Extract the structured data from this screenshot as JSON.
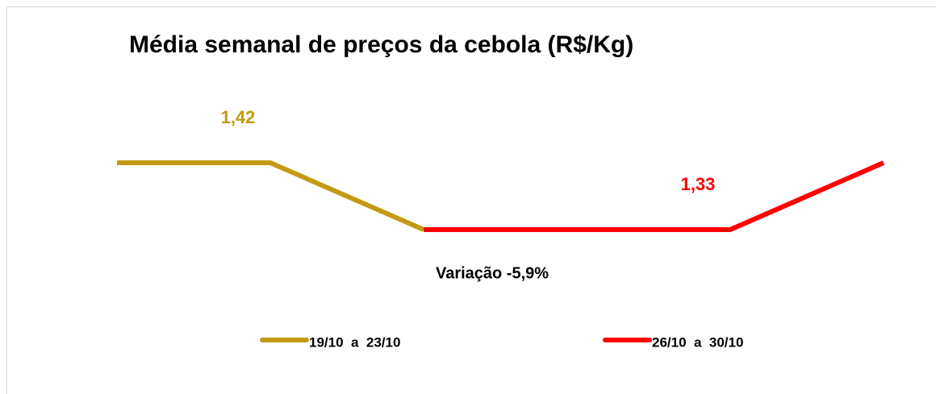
{
  "chart_data": {
    "type": "line",
    "title": "Média semanal de preços da cebola (R$/Kg)",
    "annotation": "Variação -5,9%",
    "categories": [
      null,
      null,
      null,
      null,
      null,
      null
    ],
    "series": [
      {
        "name": "19/10  a  23/10",
        "color": "#c39a14",
        "values": [
          1.42,
          1.42,
          1.33,
          null,
          null,
          null
        ],
        "value_labels": [
          null,
          "1,42",
          null,
          null,
          null,
          null
        ]
      },
      {
        "name": "26/10  a  30/10",
        "color": "#ff0000",
        "values": [
          null,
          null,
          1.33,
          1.33,
          1.33,
          1.42
        ],
        "value_labels": [
          null,
          null,
          null,
          null,
          "1,33",
          null
        ]
      }
    ]
  }
}
